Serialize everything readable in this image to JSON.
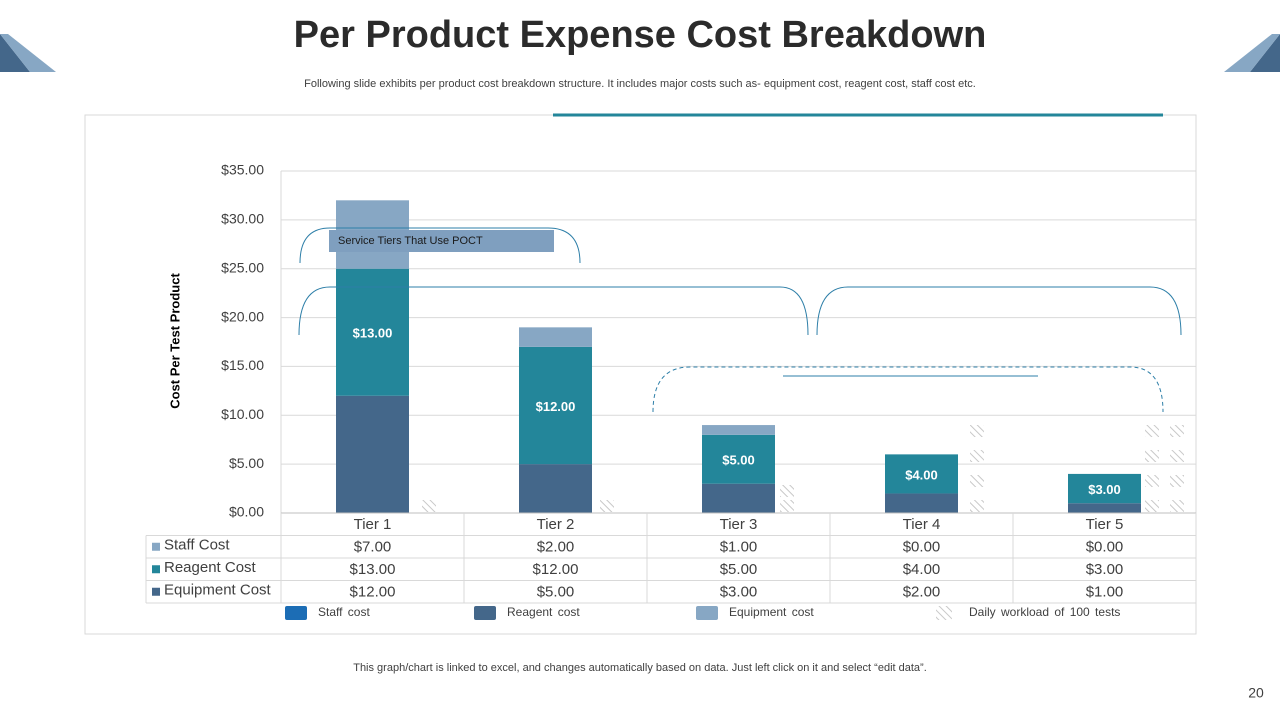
{
  "chart_data": {
    "type": "bar",
    "stacked": true,
    "title": "Per Product Expense Cost Breakdown",
    "subtitle": "Following slide exhibits per product cost breakdown structure. It includes major costs such as- equipment cost, reagent cost, staff cost etc.",
    "y_label": "Cost Per Test Product",
    "categories": [
      "Tier 1",
      "Tier 2",
      "Tier 3",
      "Tier 4",
      "Tier 5"
    ],
    "series": [
      {
        "name": "Equipment Cost",
        "color": "#44678a",
        "values": [
          12,
          5,
          3,
          2,
          1
        ],
        "value_labels": [
          "$12.00",
          "$5.00",
          "$3.00",
          "$2.00",
          "$1.00"
        ]
      },
      {
        "name": "Reagent Cost",
        "color": "#23869a",
        "values": [
          13,
          12,
          5,
          4,
          3
        ],
        "value_labels": [
          "$13.00",
          "$12.00",
          "$5.00",
          "$4.00",
          "$3.00"
        ],
        "data_labels": true
      },
      {
        "name": "Staff Cost",
        "color": "#87a7c4",
        "values": [
          7,
          2,
          1,
          0,
          0
        ],
        "value_labels": [
          "$7.00",
          "$2.00",
          "$1.00",
          "$0.00",
          "$0.00"
        ]
      }
    ],
    "ylim": [
      0,
      35
    ],
    "yticks": [
      {
        "value": 0,
        "label": "$0.00"
      },
      {
        "value": 5,
        "label": "$5.00"
      },
      {
        "value": 10,
        "label": "$10.00"
      },
      {
        "value": 15,
        "label": "$15.00"
      },
      {
        "value": 20,
        "label": "$20.00"
      },
      {
        "value": 25,
        "label": "$25.00"
      },
      {
        "value": 30,
        "label": "$30.00"
      },
      {
        "value": 35,
        "label": "$35.00"
      }
    ],
    "grid": true,
    "data_table": true,
    "annotation": "Service Tiers That Use POCT",
    "legend_items": [
      {
        "name": "Staff cost",
        "color": "#1c6db5"
      },
      {
        "name": "Reagent cost",
        "color": "#44678a"
      },
      {
        "name": "Equipment cost",
        "color": "#87a7c4"
      },
      {
        "name": "Daily workload of 100 tests",
        "pattern": "hatch"
      }
    ],
    "footnote": "This graph/chart is linked to excel, and changes automatically based on data. Just left click on it and select “edit data”.",
    "page_number": "20"
  }
}
